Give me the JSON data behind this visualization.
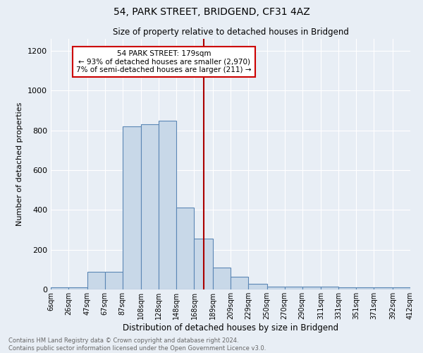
{
  "title1": "54, PARK STREET, BRIDGEND, CF31 4AZ",
  "title2": "Size of property relative to detached houses in Bridgend",
  "xlabel": "Distribution of detached houses by size in Bridgend",
  "ylabel": "Number of detached properties",
  "footnote": "Contains HM Land Registry data © Crown copyright and database right 2024.\nContains public sector information licensed under the Open Government Licence v3.0.",
  "bin_labels": [
    "6sqm",
    "26sqm",
    "47sqm",
    "67sqm",
    "87sqm",
    "108sqm",
    "128sqm",
    "148sqm",
    "168sqm",
    "189sqm",
    "209sqm",
    "229sqm",
    "250sqm",
    "270sqm",
    "290sqm",
    "311sqm",
    "331sqm",
    "351sqm",
    "371sqm",
    "392sqm",
    "412sqm"
  ],
  "bin_lefts": [
    6,
    26,
    47,
    67,
    87,
    108,
    128,
    148,
    168,
    189,
    209,
    229,
    250,
    270,
    290,
    311,
    331,
    351,
    371,
    392
  ],
  "bar_heights": [
    10,
    10,
    90,
    90,
    820,
    830,
    850,
    410,
    255,
    110,
    65,
    30,
    15,
    15,
    15,
    15,
    10,
    10,
    10,
    10
  ],
  "bar_color": "#c8d8e8",
  "bar_edge_color": "#5b87b5",
  "annotation_box_text": "54 PARK STREET: 179sqm\n← 93% of detached houses are smaller (2,970)\n7% of semi-detached houses are larger (211) →",
  "annotation_box_color": "#ffffff",
  "annotation_box_edge_color": "#cc0000",
  "vline_x": 179,
  "vline_color": "#aa0000",
  "ylim": [
    0,
    1260
  ],
  "yticks": [
    0,
    200,
    400,
    600,
    800,
    1000,
    1200
  ],
  "background_color": "#e8eef5",
  "grid_color": "#ffffff",
  "title1_fontsize": 10,
  "title2_fontsize": 8.5,
  "ylabel_fontsize": 8,
  "xlabel_fontsize": 8.5,
  "footnote_fontsize": 6.0,
  "footnote_color": "#666666"
}
